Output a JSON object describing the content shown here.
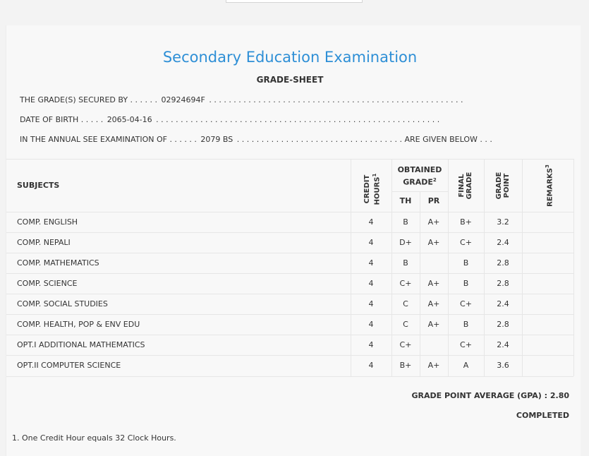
{
  "header": {
    "title": "Secondary Education Examination",
    "subtitle": "GRADE-SHEET"
  },
  "info": {
    "secured_by_label": "THE GRADE(S) SECURED BY . . . . . .",
    "secured_by_value": "02924694F",
    "secured_by_dots": ". . . . . . . . . . . . . . . . . . . . . . . . . . . . . . . . . . . . . . . . . . . . . . . . . . . .",
    "dob_label": "DATE OF BIRTH . . . . .",
    "dob_value": "2065-04-16",
    "dob_dots": ". . . . . . . . . . . . . . . . . . . . . . . . . . . . . . . . . . . . . . . . . . . . . . . . . . . . . . . . . .",
    "exam_label": "IN THE ANNUAL SEE EXAMINATION OF . . . . . .",
    "exam_value": "2079 BS",
    "exam_dots": ". . . . . . . . . . . . . . . . . . . . . . . . . . . . . . . . . .",
    "exam_suffix": "ARE GIVEN BELOW . . ."
  },
  "table": {
    "col_subjects": "SUBJECTS",
    "col_credit_line1": "CREDIT",
    "col_credit_line2": "HOURS",
    "col_credit_sup": "1",
    "col_obtained_line1": "OBTAINED",
    "col_obtained_line2": "GRADE",
    "col_obtained_sup": "2",
    "col_th": "TH",
    "col_pr": "PR",
    "col_final_line1": "FINAL",
    "col_final_line2": "GRADE",
    "col_point_line1": "GRADE",
    "col_point_line2": "POINT",
    "col_remarks": "REMARKS",
    "col_remarks_sup": "3",
    "rows": [
      {
        "subject": "COMP. ENGLISH",
        "credit": "4",
        "th": "B",
        "pr": "A+",
        "final": "B+",
        "point": "3.2",
        "remarks": ""
      },
      {
        "subject": "COMP. NEPALI",
        "credit": "4",
        "th": "D+",
        "pr": "A+",
        "final": "C+",
        "point": "2.4",
        "remarks": ""
      },
      {
        "subject": "COMP. MATHEMATICS",
        "credit": "4",
        "th": "B",
        "pr": "",
        "final": "B",
        "point": "2.8",
        "remarks": ""
      },
      {
        "subject": "COMP. SCIENCE",
        "credit": "4",
        "th": "C+",
        "pr": "A+",
        "final": "B",
        "point": "2.8",
        "remarks": ""
      },
      {
        "subject": "COMP. SOCIAL STUDIES",
        "credit": "4",
        "th": "C",
        "pr": "A+",
        "final": "C+",
        "point": "2.4",
        "remarks": ""
      },
      {
        "subject": "COMP. HEALTH, POP & ENV EDU",
        "credit": "4",
        "th": "C",
        "pr": "A+",
        "final": "B",
        "point": "2.8",
        "remarks": ""
      },
      {
        "subject": "OPT.I ADDITIONAL MATHEMATICS",
        "credit": "4",
        "th": "C+",
        "pr": "",
        "final": "C+",
        "point": "2.4",
        "remarks": ""
      },
      {
        "subject": "OPT.II COMPUTER SCIENCE",
        "credit": "4",
        "th": "B+",
        "pr": "A+",
        "final": "A",
        "point": "3.6",
        "remarks": ""
      }
    ]
  },
  "summary": {
    "gpa": "GRADE POINT AVERAGE (GPA) : 2.80",
    "status": "COMPLETED"
  },
  "footnotes": {
    "note1": "1. One Credit Hour equals 32 Clock Hours."
  }
}
